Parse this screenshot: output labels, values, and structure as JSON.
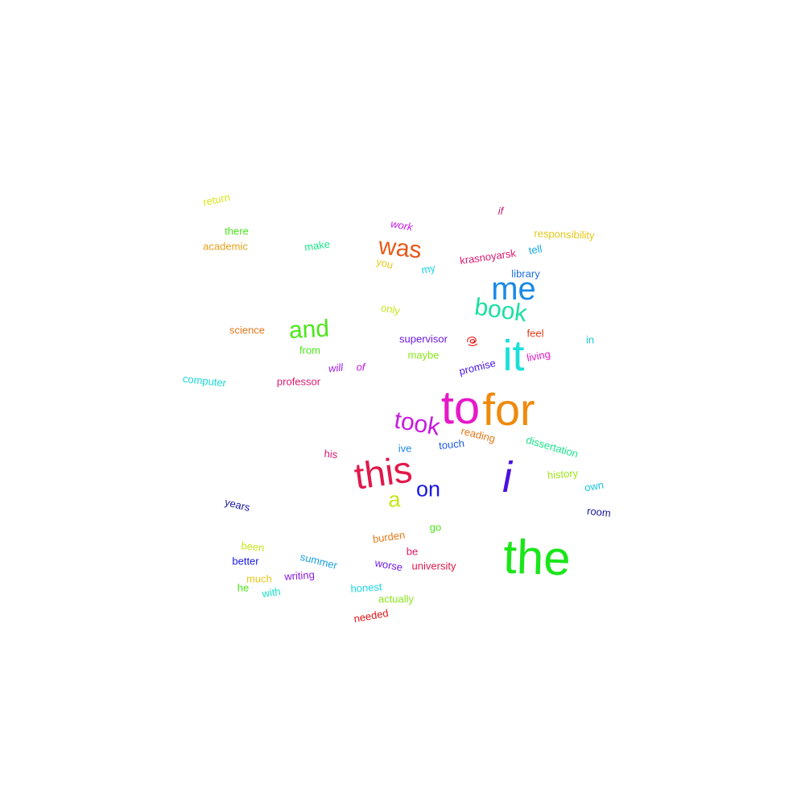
{
  "word_cloud": {
    "words": [
      {
        "text": "to",
        "color": "#e619c8"
      },
      {
        "text": "for",
        "color": "#ef8a0c"
      },
      {
        "text": "the",
        "color": "#19e619"
      },
      {
        "text": "it",
        "color": "#19e0d8"
      },
      {
        "text": "i",
        "color": "#4b0fe0"
      },
      {
        "text": "this",
        "color": "#e0194b"
      },
      {
        "text": "me",
        "color": "#1a8ae6"
      },
      {
        "text": "took",
        "color": "#c819e0"
      },
      {
        "text": "book",
        "color": "#19e0a0"
      },
      {
        "text": "was",
        "color": "#e65a19"
      },
      {
        "text": "and",
        "color": "#4be619"
      },
      {
        "text": "on",
        "color": "#1a19e6"
      },
      {
        "text": "a",
        "color": "#c8e619"
      },
      {
        "text": "return",
        "color": "#d8e619"
      },
      {
        "text": "there",
        "color": "#4be619"
      },
      {
        "text": "academic",
        "color": "#e6a019"
      },
      {
        "text": "make",
        "color": "#19e68a"
      },
      {
        "text": "work",
        "color": "#c819e6"
      },
      {
        "text": "if",
        "color": "#c8196e"
      },
      {
        "text": "responsibility",
        "color": "#e6c819"
      },
      {
        "text": "tell",
        "color": "#1aa8e6"
      },
      {
        "text": "you",
        "color": "#e6c819"
      },
      {
        "text": "my",
        "color": "#19d8e0"
      },
      {
        "text": "krasnoyarsk",
        "color": "#e0196e"
      },
      {
        "text": "library",
        "color": "#1a6ee6"
      },
      {
        "text": "only",
        "color": "#c8e619"
      },
      {
        "text": "science",
        "color": "#e67819"
      },
      {
        "text": "supervisor",
        "color": "#6e19e6"
      },
      {
        "text": "feel",
        "color": "#e63a19"
      },
      {
        "text": "in",
        "color": "#19c8d8"
      },
      {
        "text": "from",
        "color": "#4be619"
      },
      {
        "text": "maybe",
        "color": "#8ae619"
      },
      {
        "text": "living",
        "color": "#e619c8"
      },
      {
        "text": "computer",
        "color": "#19d8d0"
      },
      {
        "text": "professor",
        "color": "#e0196e"
      },
      {
        "text": "will",
        "color": "#a019e6"
      },
      {
        "text": "of",
        "color": "#c819e0"
      },
      {
        "text": "promise",
        "color": "#4b19e6"
      },
      {
        "text": "reading",
        "color": "#e67819"
      },
      {
        "text": "touch",
        "color": "#1a5ae6"
      },
      {
        "text": "ive",
        "color": "#1a8ae6"
      },
      {
        "text": "dissertation",
        "color": "#19e68a"
      },
      {
        "text": "his",
        "color": "#e0196e"
      },
      {
        "text": "history",
        "color": "#a0e619"
      },
      {
        "text": "own",
        "color": "#19c8e0"
      },
      {
        "text": "years",
        "color": "#1a19a0"
      },
      {
        "text": "room",
        "color": "#1a19a0"
      },
      {
        "text": "go",
        "color": "#4be619"
      },
      {
        "text": "burden",
        "color": "#e67819"
      },
      {
        "text": "been",
        "color": "#c8e619"
      },
      {
        "text": "be",
        "color": "#e0196e"
      },
      {
        "text": "summer",
        "color": "#1aa0e6"
      },
      {
        "text": "better",
        "color": "#1a19e6"
      },
      {
        "text": "worse",
        "color": "#6e19e6"
      },
      {
        "text": "university",
        "color": "#e0194b"
      },
      {
        "text": "much",
        "color": "#e6c819"
      },
      {
        "text": "writing",
        "color": "#8a19e6"
      },
      {
        "text": "he",
        "color": "#4be619"
      },
      {
        "text": "with",
        "color": "#19e0c8"
      },
      {
        "text": "honest",
        "color": "#19d8e6"
      },
      {
        "text": "actually",
        "color": "#8ae619"
      },
      {
        "text": "needed",
        "color": "#e6191a"
      }
    ]
  }
}
